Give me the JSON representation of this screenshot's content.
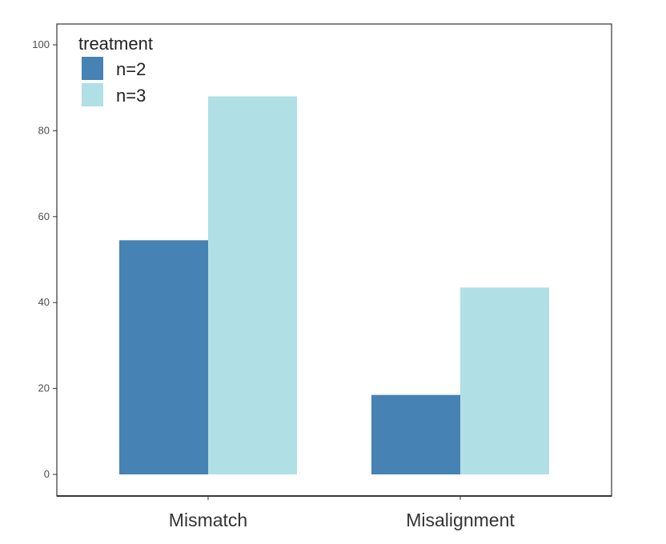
{
  "chart_data": {
    "type": "bar",
    "categories": [
      "Mismatch",
      "Misalignment"
    ],
    "series": [
      {
        "name": "n=2",
        "values": [
          54.5,
          18.5
        ],
        "color": "#4682b4"
      },
      {
        "name": "n=3",
        "values": [
          88,
          43.5
        ],
        "color": "#b0dfe5"
      }
    ],
    "legend": {
      "title": "treatment",
      "position": "top-left"
    },
    "ylim": [
      0,
      100
    ],
    "yticks": [
      0,
      20,
      40,
      60,
      80,
      100
    ],
    "grid": false,
    "xlabel": "",
    "ylabel": ""
  }
}
